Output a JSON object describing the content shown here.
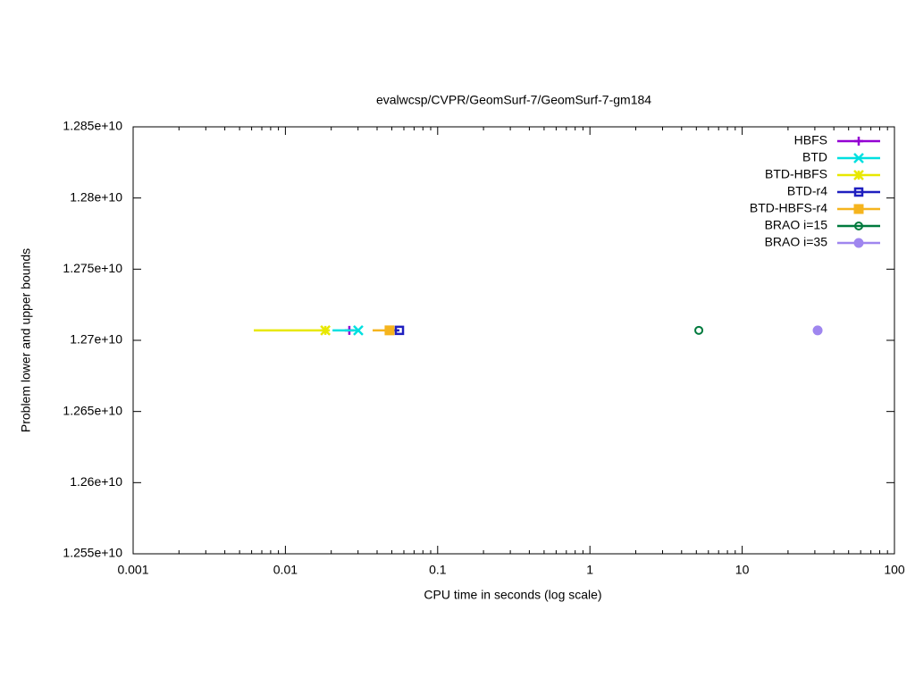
{
  "chart_data": {
    "type": "line",
    "title": "evalwcsp/CVPR/GeomSurf-7/GeomSurf-7-gm184",
    "x_label": "CPU time in seconds (log scale)",
    "y_label": "Problem lower and upper bounds",
    "x_log": true,
    "xlim": [
      0.001,
      100
    ],
    "xticks": [
      0.001,
      0.01,
      0.1,
      1,
      10,
      100
    ],
    "ylim": [
      12550000000,
      12850000000
    ],
    "yticks": [
      {
        "value": 12550000000,
        "label": "1.255e+10"
      },
      {
        "value": 12600000000,
        "label": "1.26e+10"
      },
      {
        "value": 12650000000,
        "label": "1.265e+10"
      },
      {
        "value": 12700000000,
        "label": "1.27e+10"
      },
      {
        "value": 12750000000,
        "label": "1.275e+10"
      },
      {
        "value": 12800000000,
        "label": "1.28e+10"
      },
      {
        "value": 12850000000,
        "label": "1.285e+10"
      }
    ],
    "grid": false,
    "legend": "top-right",
    "series": [
      {
        "name": "HBFS",
        "color": "#9400d3",
        "marker": "plus",
        "x": [
          0.0245,
          0.0263
        ],
        "values": [
          12707000000,
          12707000000
        ]
      },
      {
        "name": "BTD",
        "color": "#00e0e0",
        "marker": "cross",
        "x": [
          0.0204,
          0.0301
        ],
        "values": [
          12707000000,
          12707000000
        ]
      },
      {
        "name": "BTD-HBFS",
        "color": "#e8e800",
        "marker": "star",
        "x": [
          0.0062,
          0.0183
        ],
        "values": [
          12707000000,
          12707000000
        ]
      },
      {
        "name": "BTD-r4",
        "color": "#1f1fbf",
        "marker": "open-square",
        "x": [
          0.052,
          0.0561
        ],
        "values": [
          12707000000,
          12707000000
        ]
      },
      {
        "name": "BTD-HBFS-r4",
        "color": "#f5b41e",
        "marker": "square",
        "x": [
          0.0374,
          0.0483
        ],
        "values": [
          12707000000,
          12707000000
        ]
      },
      {
        "name": "BRAO i=15",
        "color": "#007a3d",
        "marker": "dot-circle",
        "x": [
          5.19
        ],
        "values": [
          12707000000
        ]
      },
      {
        "name": "BRAO i=35",
        "color": "#9f86ef",
        "marker": "circle",
        "x": [
          31.3
        ],
        "values": [
          12707000000
        ]
      }
    ]
  }
}
